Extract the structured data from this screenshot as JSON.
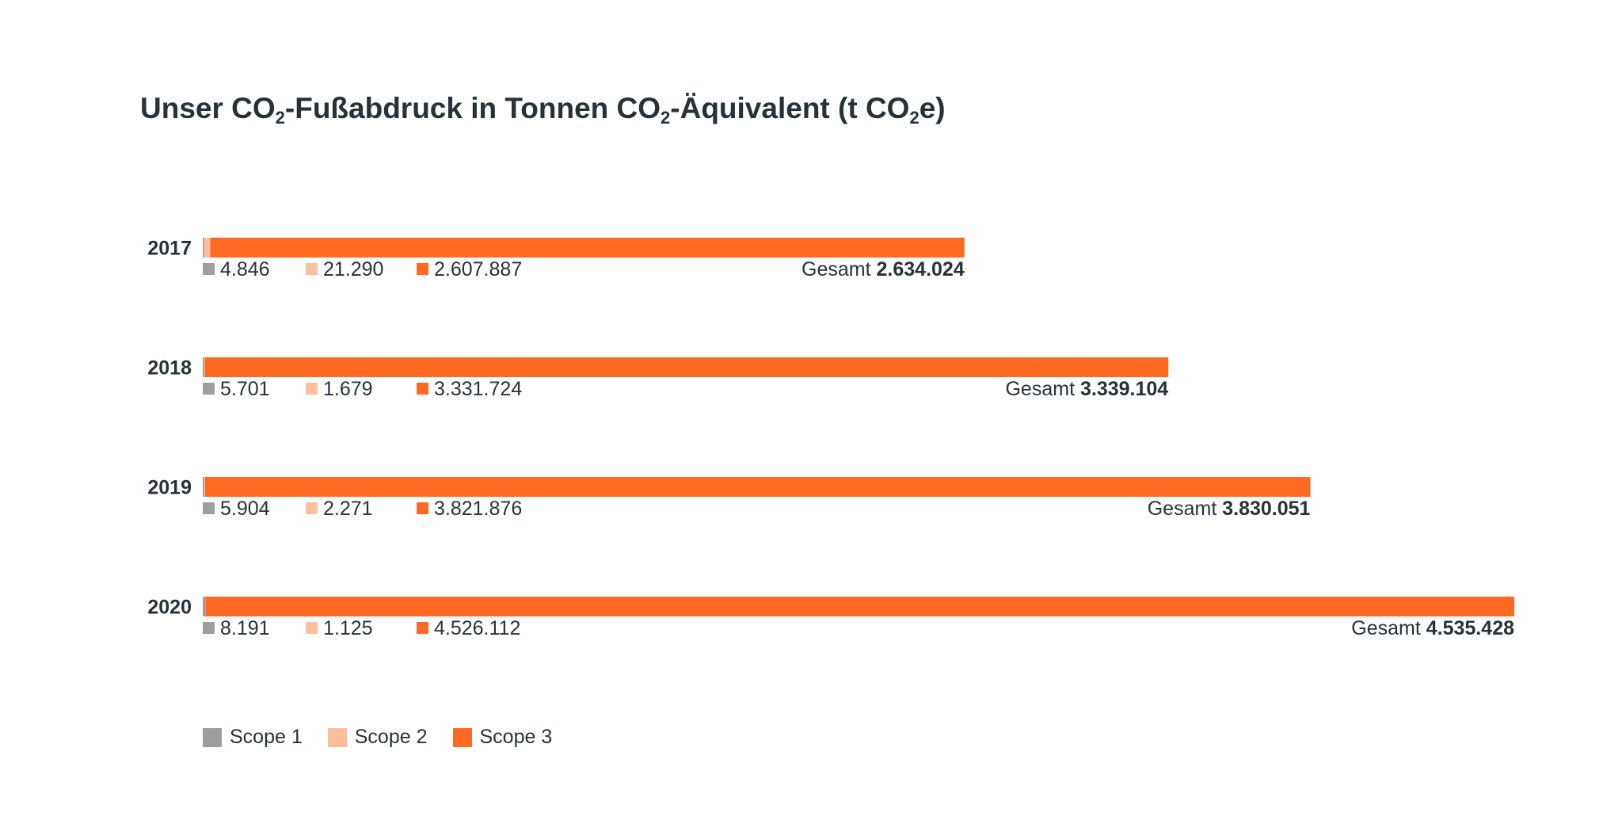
{
  "title": {
    "part1": "Unser CO",
    "sub1": "2",
    "part2": "-Fußabdruck in Tonnen CO",
    "sub2": "2",
    "part3": "-Äquivalent (t CO",
    "sub3": "2",
    "part4": "e)"
  },
  "colors": {
    "scope1": "#9e9e9e",
    "scope2": "#fbbf9d",
    "scope3": "#ff6a22",
    "text": "#263238"
  },
  "total_label": "Gesamt",
  "legend": [
    {
      "label": "Scope 1",
      "color": "#9e9e9e"
    },
    {
      "label": "Scope 2",
      "color": "#fbbf9d"
    },
    {
      "label": "Scope 3",
      "color": "#ff6a22"
    }
  ],
  "chart_data": {
    "type": "bar",
    "orientation": "horizontal",
    "stacked": true,
    "categories": [
      "2017",
      "2018",
      "2019",
      "2020"
    ],
    "series": [
      {
        "name": "Scope 1",
        "values": [
          4846,
          5701,
          5904,
          8191
        ],
        "labels": [
          "4.846",
          "5.701",
          "5.904",
          "8.191"
        ]
      },
      {
        "name": "Scope 2",
        "values": [
          21290,
          1679,
          2271,
          1125
        ],
        "labels": [
          "21.290",
          "1.679",
          "2.271",
          "1.125"
        ]
      },
      {
        "name": "Scope 3",
        "values": [
          2607887,
          3331724,
          3821876,
          4526112
        ],
        "labels": [
          "2.607.887",
          "3.331.724",
          "3.821.876",
          "4.526.112"
        ]
      }
    ],
    "totals": [
      2634024,
      3339104,
      3830051,
      4535428
    ],
    "total_labels": [
      "2.634.024",
      "3.339.104",
      "3.830.051",
      "4.535.428"
    ],
    "legend_position": "bottom-left",
    "grid": false
  }
}
